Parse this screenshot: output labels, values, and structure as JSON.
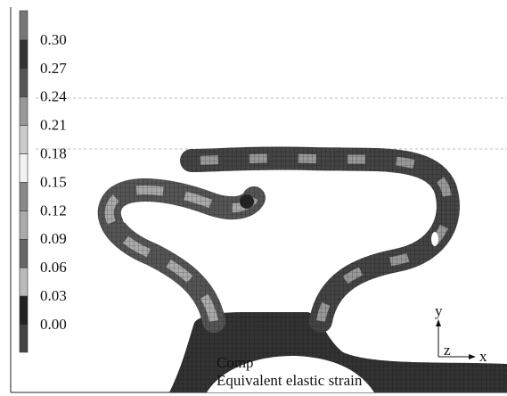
{
  "legend": {
    "ticks": [
      "0.30",
      "0.27",
      "0.24",
      "0.21",
      "0.18",
      "0.15",
      "0.12",
      "0.09",
      "0.06",
      "0.03",
      "0.00"
    ]
  },
  "labels": {
    "line1": "Comp",
    "line2": "Equivalent elastic strain"
  },
  "triad": {
    "x": "x",
    "y": "y",
    "z": "z"
  }
}
